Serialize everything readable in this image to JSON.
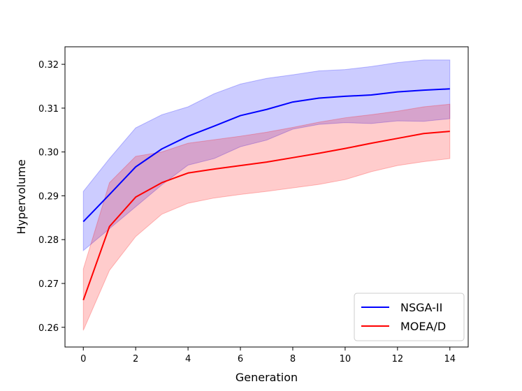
{
  "chart_data": {
    "type": "line",
    "title": "",
    "xlabel": "Generation",
    "ylabel": "Hypervolume",
    "xlim": [
      -0.7,
      14.7
    ],
    "ylim": [
      0.2555,
      0.324
    ],
    "xticks": [
      0,
      2,
      4,
      6,
      8,
      10,
      12,
      14
    ],
    "yticks": [
      0.26,
      0.27,
      0.28,
      0.29,
      0.3,
      0.31,
      0.32
    ],
    "ytick_labels": [
      "0.26",
      "0.27",
      "0.28",
      "0.29",
      "0.30",
      "0.31",
      "0.32"
    ],
    "legend_position": "lower-right",
    "x": [
      0,
      1,
      2,
      3,
      4,
      5,
      6,
      7,
      8,
      9,
      10,
      11,
      12,
      13,
      14
    ],
    "series": [
      {
        "name": "NSGA-II",
        "color": "#0000ff",
        "band_color": "#0000ff",
        "values": [
          0.2841,
          0.2903,
          0.2966,
          0.3007,
          0.3036,
          0.3059,
          0.3083,
          0.3097,
          0.3114,
          0.3123,
          0.3127,
          0.313,
          0.3137,
          0.3141,
          0.3144
        ],
        "lower": [
          0.2775,
          0.2825,
          0.2875,
          0.2925,
          0.297,
          0.2985,
          0.3012,
          0.3027,
          0.3052,
          0.3063,
          0.3067,
          0.3065,
          0.3071,
          0.307,
          0.3076
        ],
        "upper": [
          0.291,
          0.2985,
          0.3055,
          0.3085,
          0.3103,
          0.3133,
          0.3155,
          0.3168,
          0.3176,
          0.3185,
          0.3188,
          0.3195,
          0.3204,
          0.321,
          0.321
        ]
      },
      {
        "name": "MOEA/D",
        "color": "#ff0000",
        "band_color": "#ff0000",
        "values": [
          0.2662,
          0.283,
          0.2897,
          0.293,
          0.2952,
          0.2961,
          0.2969,
          0.2977,
          0.2987,
          0.2997,
          0.3008,
          0.302,
          0.3031,
          0.3042,
          0.3047
        ],
        "lower": [
          0.2593,
          0.273,
          0.2807,
          0.2858,
          0.2883,
          0.2895,
          0.2903,
          0.291,
          0.2918,
          0.2926,
          0.2937,
          0.2955,
          0.2969,
          0.2978,
          0.2985
        ],
        "upper": [
          0.2733,
          0.293,
          0.299,
          0.3,
          0.302,
          0.3028,
          0.3036,
          0.3045,
          0.3056,
          0.3068,
          0.3078,
          0.3085,
          0.3093,
          0.3103,
          0.3109
        ]
      }
    ]
  }
}
